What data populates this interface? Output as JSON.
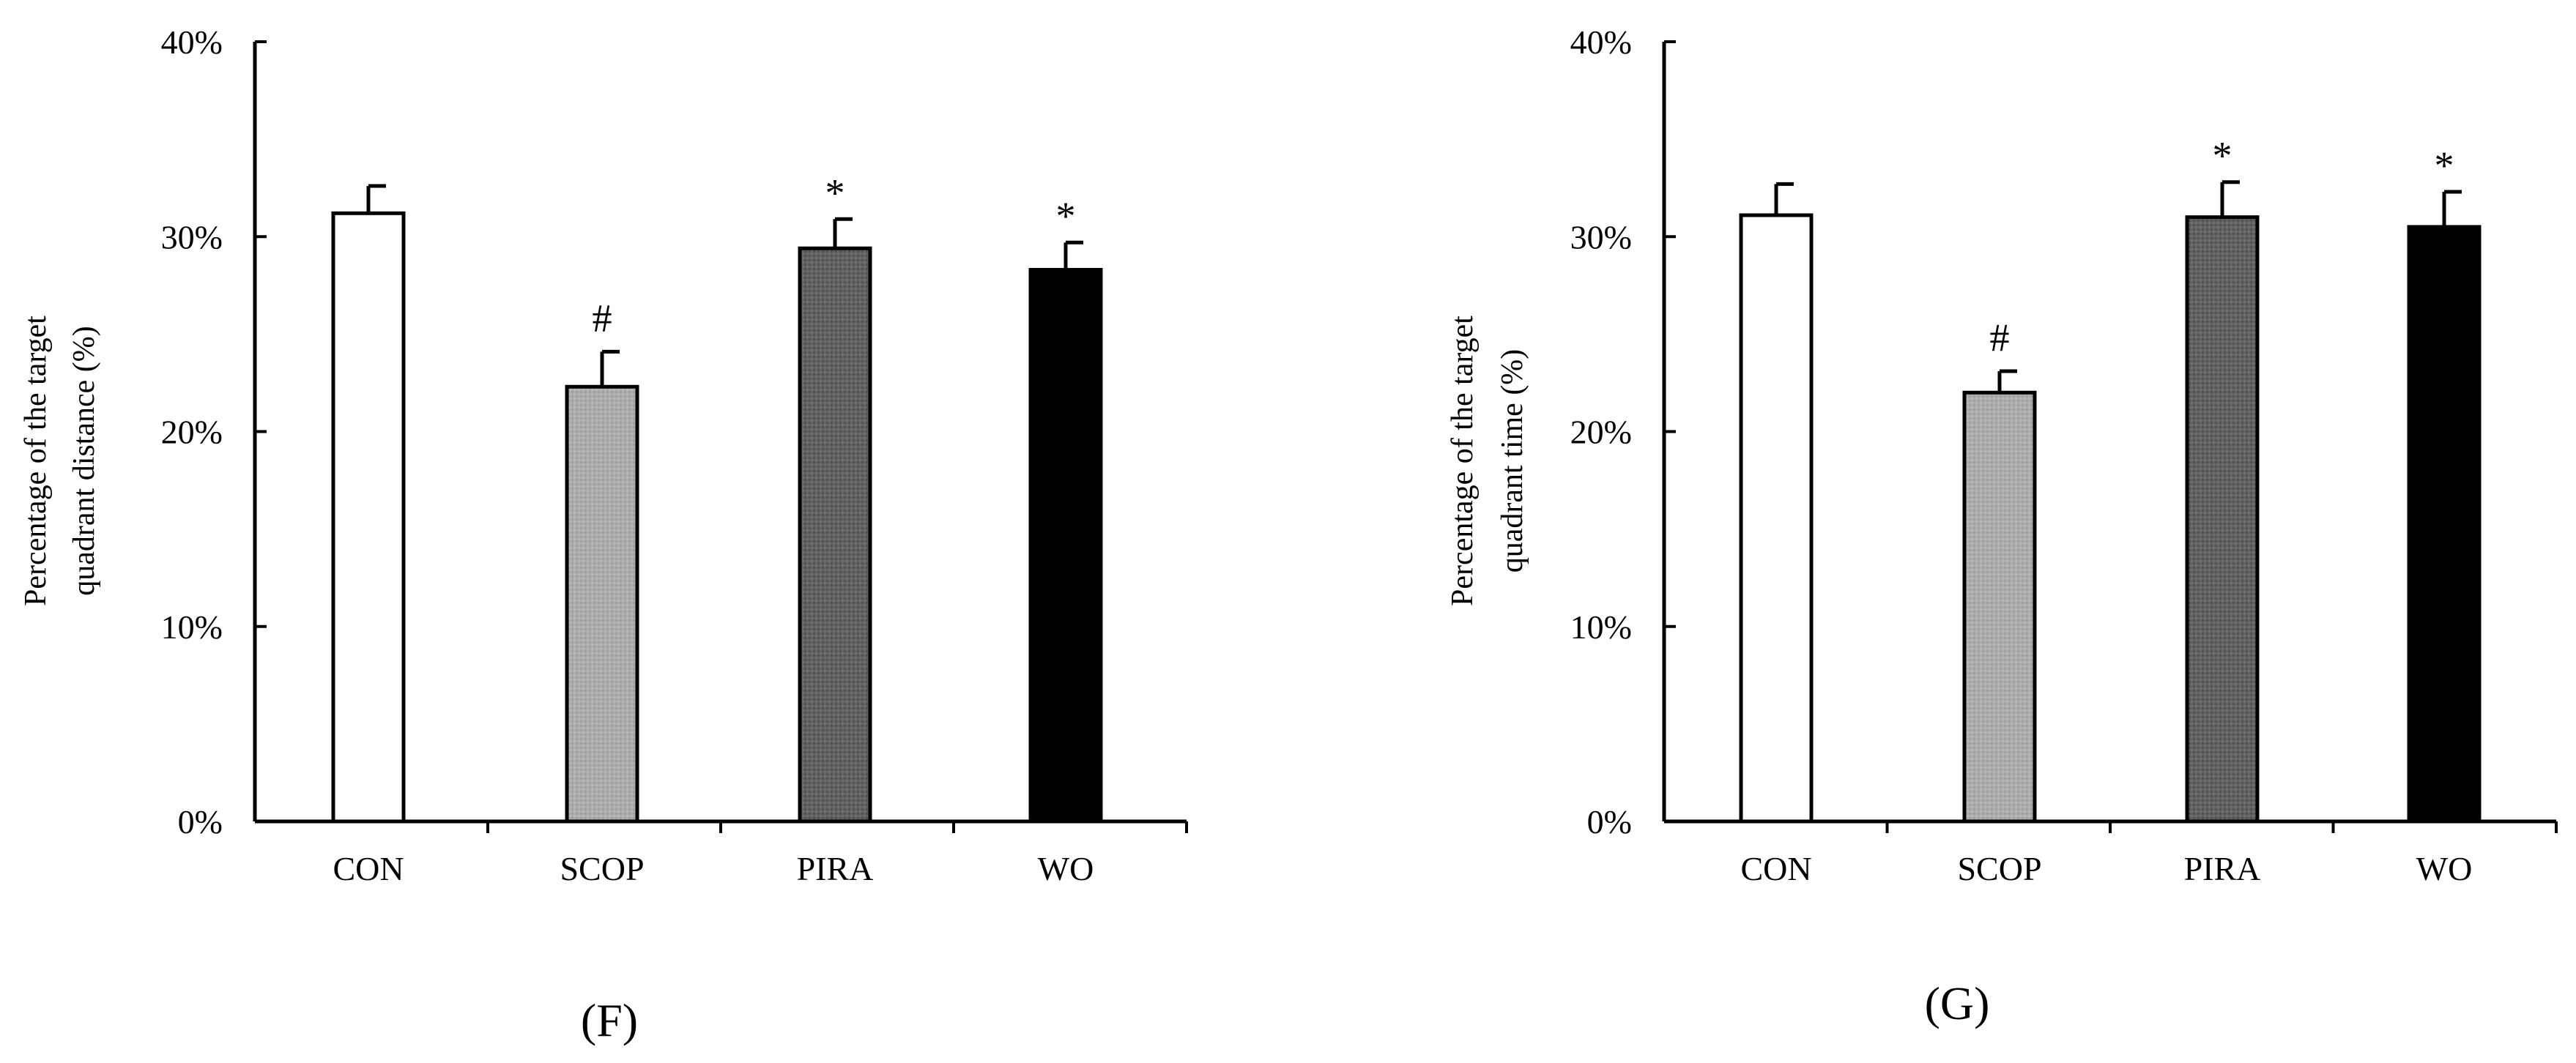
{
  "chart_data": [
    {
      "panel_label": "(F)",
      "type": "bar",
      "title": "",
      "xlabel": "",
      "ylabel": [
        "Percentage of the target",
        "quadrant distance  (%)"
      ],
      "ylim": [
        0,
        40
      ],
      "ytick_values": [
        0,
        10,
        20,
        30,
        40
      ],
      "ytick_labels": [
        "0%",
        "10%",
        "20%",
        "30%",
        "40%"
      ],
      "categories": [
        "CON",
        "SCOP",
        "PIRA",
        "WO"
      ],
      "values": [
        31.2,
        22.3,
        29.4,
        28.3
      ],
      "errors": [
        1.4,
        1.8,
        1.5,
        1.4
      ],
      "markers": [
        "",
        "#",
        "*",
        "*"
      ],
      "colors": [
        "#ffffff",
        "#a9a9a9",
        "#616161",
        "#000000"
      ]
    },
    {
      "panel_label": "(G)",
      "type": "bar",
      "title": "",
      "xlabel": "",
      "ylabel": [
        "Percentage of the target",
        "quadrant time (%)"
      ],
      "ylim": [
        0,
        40
      ],
      "ytick_values": [
        0,
        10,
        20,
        30,
        40
      ],
      "ytick_labels": [
        "0%",
        "10%",
        "20%",
        "30%",
        "40%"
      ],
      "categories": [
        "CON",
        "SCOP",
        "PIRA",
        "WO"
      ],
      "values": [
        31.1,
        22.0,
        31.0,
        30.5
      ],
      "errors": [
        1.6,
        1.1,
        1.8,
        1.8
      ],
      "markers": [
        "",
        "#",
        "*",
        "*"
      ],
      "colors": [
        "#ffffff",
        "#a9a9a9",
        "#616161",
        "#000000"
      ]
    }
  ]
}
